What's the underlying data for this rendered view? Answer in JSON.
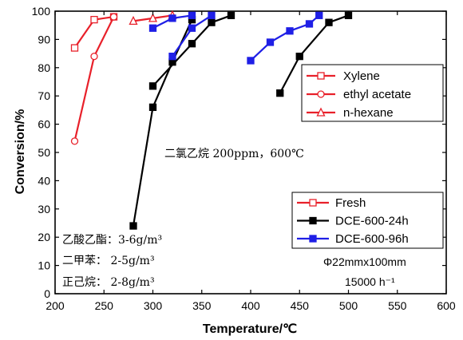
{
  "chart_data": {
    "type": "line",
    "xlabel": "Temperature/℃",
    "ylabel": "Conversion/%",
    "xlim": [
      200,
      600
    ],
    "ylim": [
      0,
      100
    ],
    "xticks": [
      200,
      250,
      300,
      350,
      400,
      450,
      500,
      550,
      600
    ],
    "yticks": [
      0,
      10,
      20,
      30,
      40,
      50,
      60,
      70,
      80,
      90,
      100
    ],
    "grid": false,
    "series": [
      {
        "name": "Fresh",
        "vocs": "Xylene",
        "marker": "square-open",
        "color": "#e8202a",
        "x": [
          220,
          240,
          260
        ],
        "y": [
          87,
          97,
          98
        ]
      },
      {
        "name": "Fresh",
        "vocs": "ethyl acetate",
        "marker": "circle-open",
        "color": "#e8202a",
        "x": [
          220,
          240,
          260
        ],
        "y": [
          54,
          84,
          98
        ]
      },
      {
        "name": "Fresh",
        "vocs": "n-hexane",
        "marker": "triangle-open",
        "color": "#e8202a",
        "x": [
          280,
          300,
          320
        ],
        "y": [
          96.5,
          97.5,
          98.5
        ]
      },
      {
        "name": "DCE-600-24h",
        "vocs": "Xylene",
        "marker": "square-filled",
        "color": "#000000",
        "x": [
          280,
          300,
          320,
          340
        ],
        "y": [
          24,
          66,
          82,
          97
        ]
      },
      {
        "name": "DCE-600-24h",
        "vocs": "ethyl acetate",
        "marker": "square-filled",
        "color": "#000000",
        "x": [
          300,
          340,
          360,
          380
        ],
        "y": [
          73.5,
          88.5,
          96,
          98.5
        ]
      },
      {
        "name": "DCE-600-24h",
        "vocs": "n-hexane",
        "marker": "square-filled",
        "color": "#000000",
        "x": [
          430,
          450,
          480,
          500
        ],
        "y": [
          71,
          84,
          96,
          98.5
        ]
      },
      {
        "name": "DCE-600-96h",
        "vocs": "Xylene",
        "marker": "square-filled",
        "color": "#1f1fe6",
        "x": [
          320,
          340,
          360
        ],
        "y": [
          84,
          94,
          98.5
        ]
      },
      {
        "name": "DCE-600-96h",
        "vocs": "ethyl acetate",
        "marker": "square-filled",
        "color": "#1f1fe6",
        "x": [
          300,
          320,
          340
        ],
        "y": [
          94,
          97.5,
          98.5
        ]
      },
      {
        "name": "DCE-600-96h",
        "vocs": "n-hexane",
        "marker": "square-filled",
        "color": "#1f1fe6",
        "x": [
          400,
          420,
          440,
          460,
          470
        ],
        "y": [
          82.5,
          89,
          93,
          95.5,
          98.5
        ]
      }
    ],
    "legend_vocs": {
      "placement": "upper-right",
      "items": [
        {
          "label": "Xylene",
          "marker": "square-open"
        },
        {
          "label": "ethyl acetate",
          "marker": "circle-open"
        },
        {
          "label": "n-hexane",
          "marker": "triangle-open"
        }
      ],
      "color": "#e8202a"
    },
    "legend_samples": {
      "placement": "lower-right",
      "items": [
        {
          "label": "Fresh",
          "marker": "square-open",
          "color": "#e8202a"
        },
        {
          "label": "DCE-600-24h",
          "marker": "square-filled",
          "color": "#000000"
        },
        {
          "label": "DCE-600-96h",
          "marker": "square-filled",
          "color": "#1f1fe6"
        }
      ]
    },
    "annotations": {
      "condition": "二氯乙烷 200ppm，600℃",
      "concentrations": [
        "乙酸乙酯：3-6g/m³",
        "二甲苯： 2-5g/m³",
        "正己烷： 2-8g/m³"
      ],
      "reactor": "Φ22mmx100mm",
      "ghsv": "15000 h⁻¹"
    }
  }
}
